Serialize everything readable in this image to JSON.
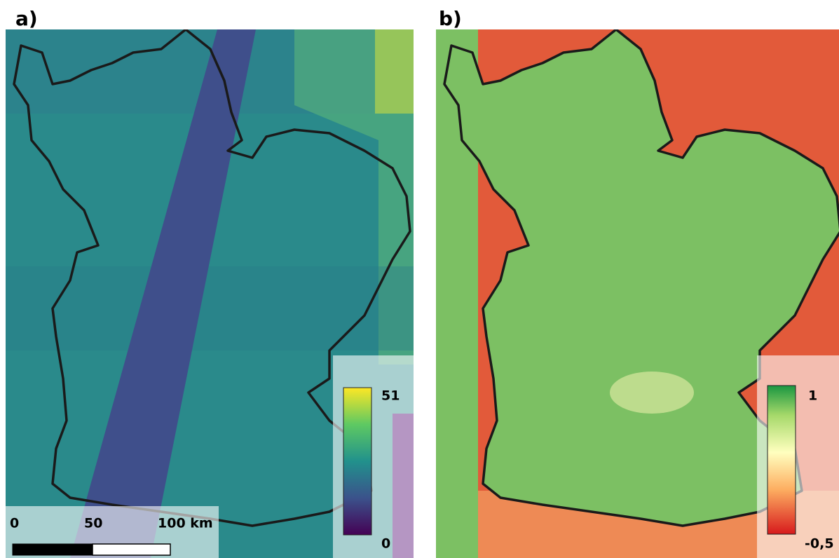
{
  "panels": [
    {
      "label": "a)",
      "colorbar": {
        "max": "51",
        "min": "0"
      },
      "scale_bar": {
        "labels": [
          "0",
          "50",
          "100 km"
        ]
      }
    },
    {
      "label": "b)",
      "colorbar": {
        "max": "1",
        "min": "-0,5"
      }
    }
  ]
}
